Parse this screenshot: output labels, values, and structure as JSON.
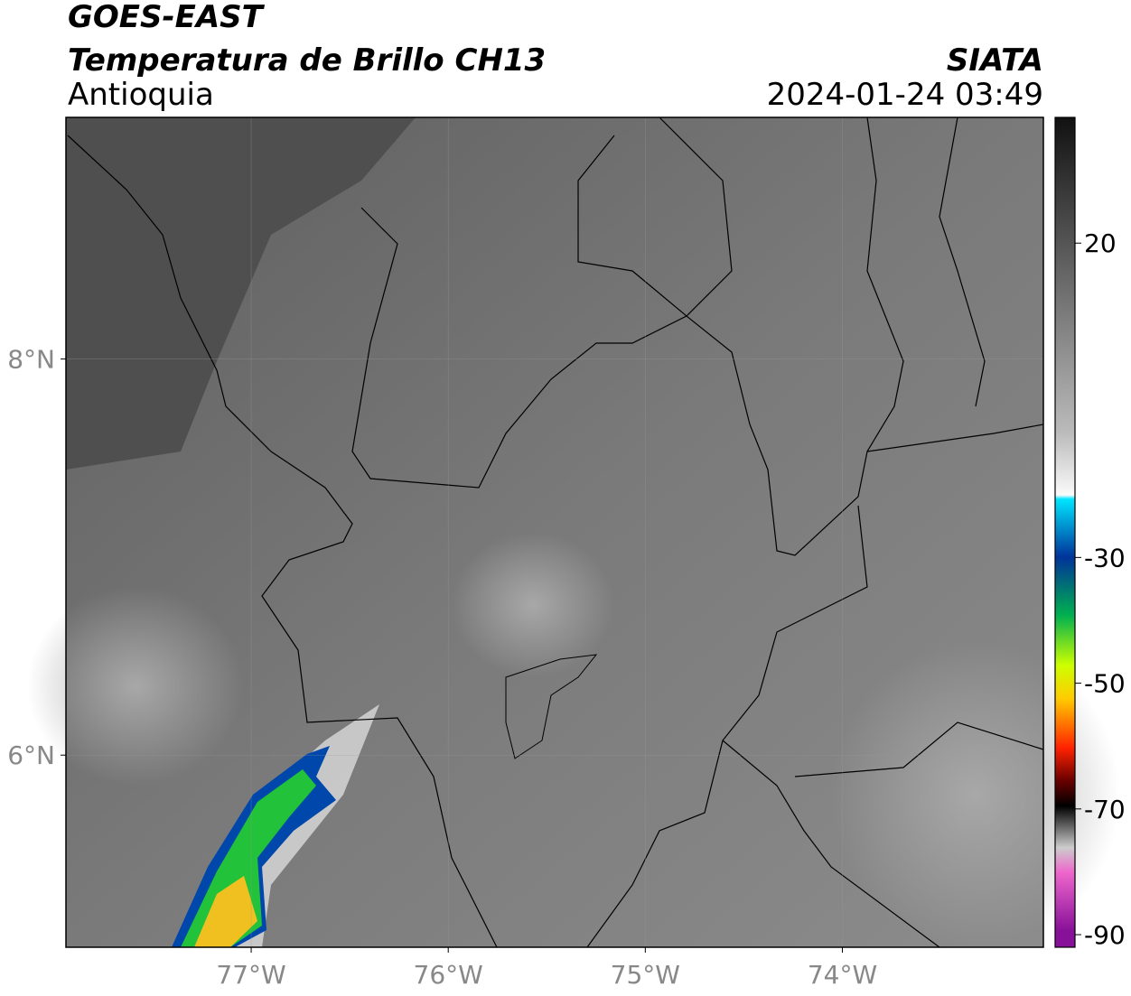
{
  "header": {
    "satellite": "GOES-EAST",
    "product": "Temperatura de Brillo CH13",
    "region": "Antioquia",
    "source": "SIATA",
    "datetime": "2024-01-24 03:49"
  },
  "map": {
    "xlim": [
      -77.94,
      -72.98
    ],
    "ylim": [
      5.03,
      9.22
    ],
    "xticks": [
      {
        "value": -77,
        "label": "77°W"
      },
      {
        "value": -76,
        "label": "76°W"
      },
      {
        "value": -75,
        "label": "75°W"
      },
      {
        "value": -74,
        "label": "74°W"
      }
    ],
    "yticks": [
      {
        "value": 8,
        "label": "8°N"
      },
      {
        "value": 6,
        "label": "6°N"
      }
    ],
    "grid": true
  },
  "colorbar": {
    "lim": [
      -92,
      40
    ],
    "ticks": [
      20,
      -30,
      -50,
      -70,
      -90
    ]
  }
}
